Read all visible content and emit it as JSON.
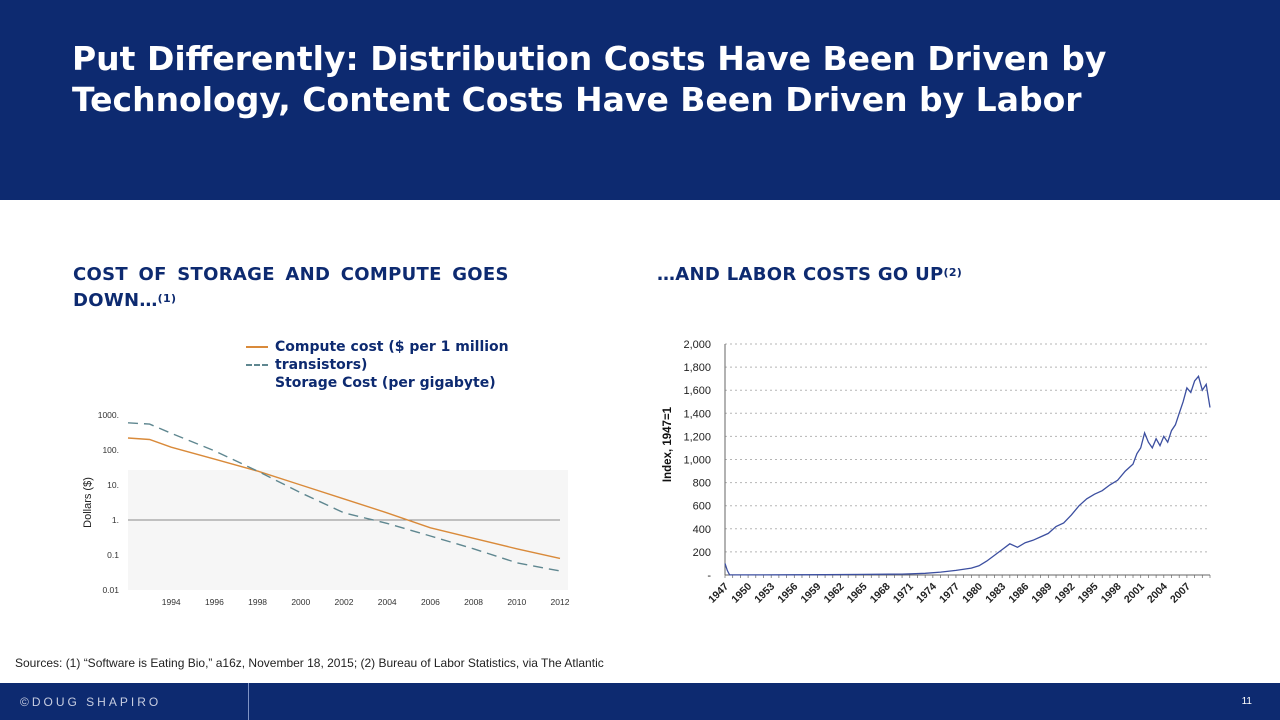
{
  "slide": {
    "title": "Put Differently: Distribution Costs Have Been Driven by Technology, Content Costs Have Been Driven by Labor",
    "left_heading": "COST OF STORAGE AND COMPUTE GOES DOWN…",
    "left_heading_sup": "(1)",
    "right_heading": "…AND LABOR COSTS GO UP",
    "right_heading_sup": "(2)",
    "sources": "Sources: (1) “Software is Eating Bio,” a16z, November 18, 2015; (2) Bureau of Labor Statistics, via The Atlantic",
    "footer_brand": "©DOUG SHAPIRO",
    "page_number": "11"
  },
  "colors": {
    "navy": "#0d2a70",
    "compute": "#d98a3a",
    "storage": "#5f8790",
    "labor": "#3c4fa0"
  },
  "chart_data": [
    {
      "type": "line",
      "title": "",
      "xlabel": "",
      "ylabel": "Dollars ($)",
      "y_scale": "log",
      "ylim": [
        0.01,
        1000
      ],
      "xlim": [
        1992,
        2012
      ],
      "y_ticks": [
        "0.01",
        "0.1",
        "1.",
        "10.",
        "100.",
        "1000."
      ],
      "y_tick_values": [
        0.01,
        0.1,
        1,
        10,
        100,
        1000
      ],
      "x_ticks": [
        "1994",
        "1996",
        "1998",
        "2000",
        "2002",
        "2004",
        "2006",
        "2008",
        "2010",
        "2012"
      ],
      "x_tick_values": [
        1994,
        1996,
        1998,
        2000,
        2002,
        2004,
        2006,
        2008,
        2010,
        2012
      ],
      "reference_line_y": 1,
      "legend_placement": "top",
      "legend": [
        "Compute cost ($ per 1 million transistors)",
        "Storage Cost (per gigabyte)"
      ],
      "series": [
        {
          "name": "Compute cost ($ per 1 million transistors)",
          "style": "solid",
          "x": [
            1992,
            1993,
            1994,
            1996,
            1998,
            2000,
            2002,
            2004,
            2006,
            2008,
            2010,
            2012
          ],
          "values": [
            220,
            200,
            120,
            55,
            25,
            10,
            4,
            1.6,
            0.6,
            0.3,
            0.15,
            0.08
          ]
        },
        {
          "name": "Storage Cost (per gigabyte)",
          "style": "dashed",
          "x": [
            1992,
            1993,
            1994,
            1996,
            1998,
            2000,
            2002,
            2004,
            2006,
            2008,
            2010,
            2012
          ],
          "values": [
            600,
            550,
            300,
            95,
            25,
            6,
            1.6,
            0.8,
            0.35,
            0.15,
            0.06,
            0.035
          ]
        }
      ]
    },
    {
      "type": "line",
      "title": "",
      "xlabel": "",
      "ylabel": "Index, 1947=1",
      "ylim": [
        0,
        2000
      ],
      "xlim": [
        1947,
        2010
      ],
      "grid": "horizontal dotted",
      "y_ticks": [
        "-",
        "200",
        "400",
        "600",
        "800",
        "1,000",
        "1,200",
        "1,400",
        "1,600",
        "1,800",
        "2,000"
      ],
      "y_tick_values": [
        0,
        200,
        400,
        600,
        800,
        1000,
        1200,
        1400,
        1600,
        1800,
        2000
      ],
      "x_ticks": [
        "1947",
        "1950",
        "1953",
        "1956",
        "1959",
        "1962",
        "1965",
        "1968",
        "1971",
        "1974",
        "1977",
        "1980",
        "1983",
        "1986",
        "1989",
        "1992",
        "1995",
        "1998",
        "2001",
        "2004",
        "2007"
      ],
      "x_tick_values": [
        1947,
        1950,
        1953,
        1956,
        1959,
        1962,
        1965,
        1968,
        1971,
        1974,
        1977,
        1980,
        1983,
        1986,
        1989,
        1992,
        1995,
        1998,
        2001,
        2004,
        2007
      ],
      "series": [
        {
          "x": [
            1947,
            1947.3,
            1947.6,
            1950,
            1955,
            1960,
            1965,
            1970,
            1973,
            1975,
            1977,
            1979,
            1980,
            1981,
            1982,
            1983,
            1984,
            1985,
            1986,
            1987,
            1988,
            1989,
            1990,
            1991,
            1992,
            1993,
            1994,
            1995,
            1996,
            1997,
            1998,
            1999,
            2000,
            2000.5,
            2001,
            2001.5,
            2002,
            2002.5,
            2003,
            2003.5,
            2004,
            2004.5,
            2005,
            2005.5,
            2006,
            2006.5,
            2007,
            2007.5,
            2008,
            2008.5,
            2009,
            2009.5,
            2010
          ],
          "values": [
            100,
            40,
            1,
            1,
            2,
            3,
            5,
            8,
            15,
            25,
            40,
            60,
            80,
            120,
            170,
            220,
            270,
            240,
            280,
            300,
            330,
            360,
            420,
            450,
            520,
            600,
            660,
            700,
            730,
            780,
            820,
            900,
            960,
            1050,
            1100,
            1230,
            1150,
            1100,
            1180,
            1120,
            1200,
            1150,
            1250,
            1300,
            1400,
            1500,
            1620,
            1580,
            1680,
            1720,
            1600,
            1650,
            1450
          ]
        }
      ]
    }
  ]
}
